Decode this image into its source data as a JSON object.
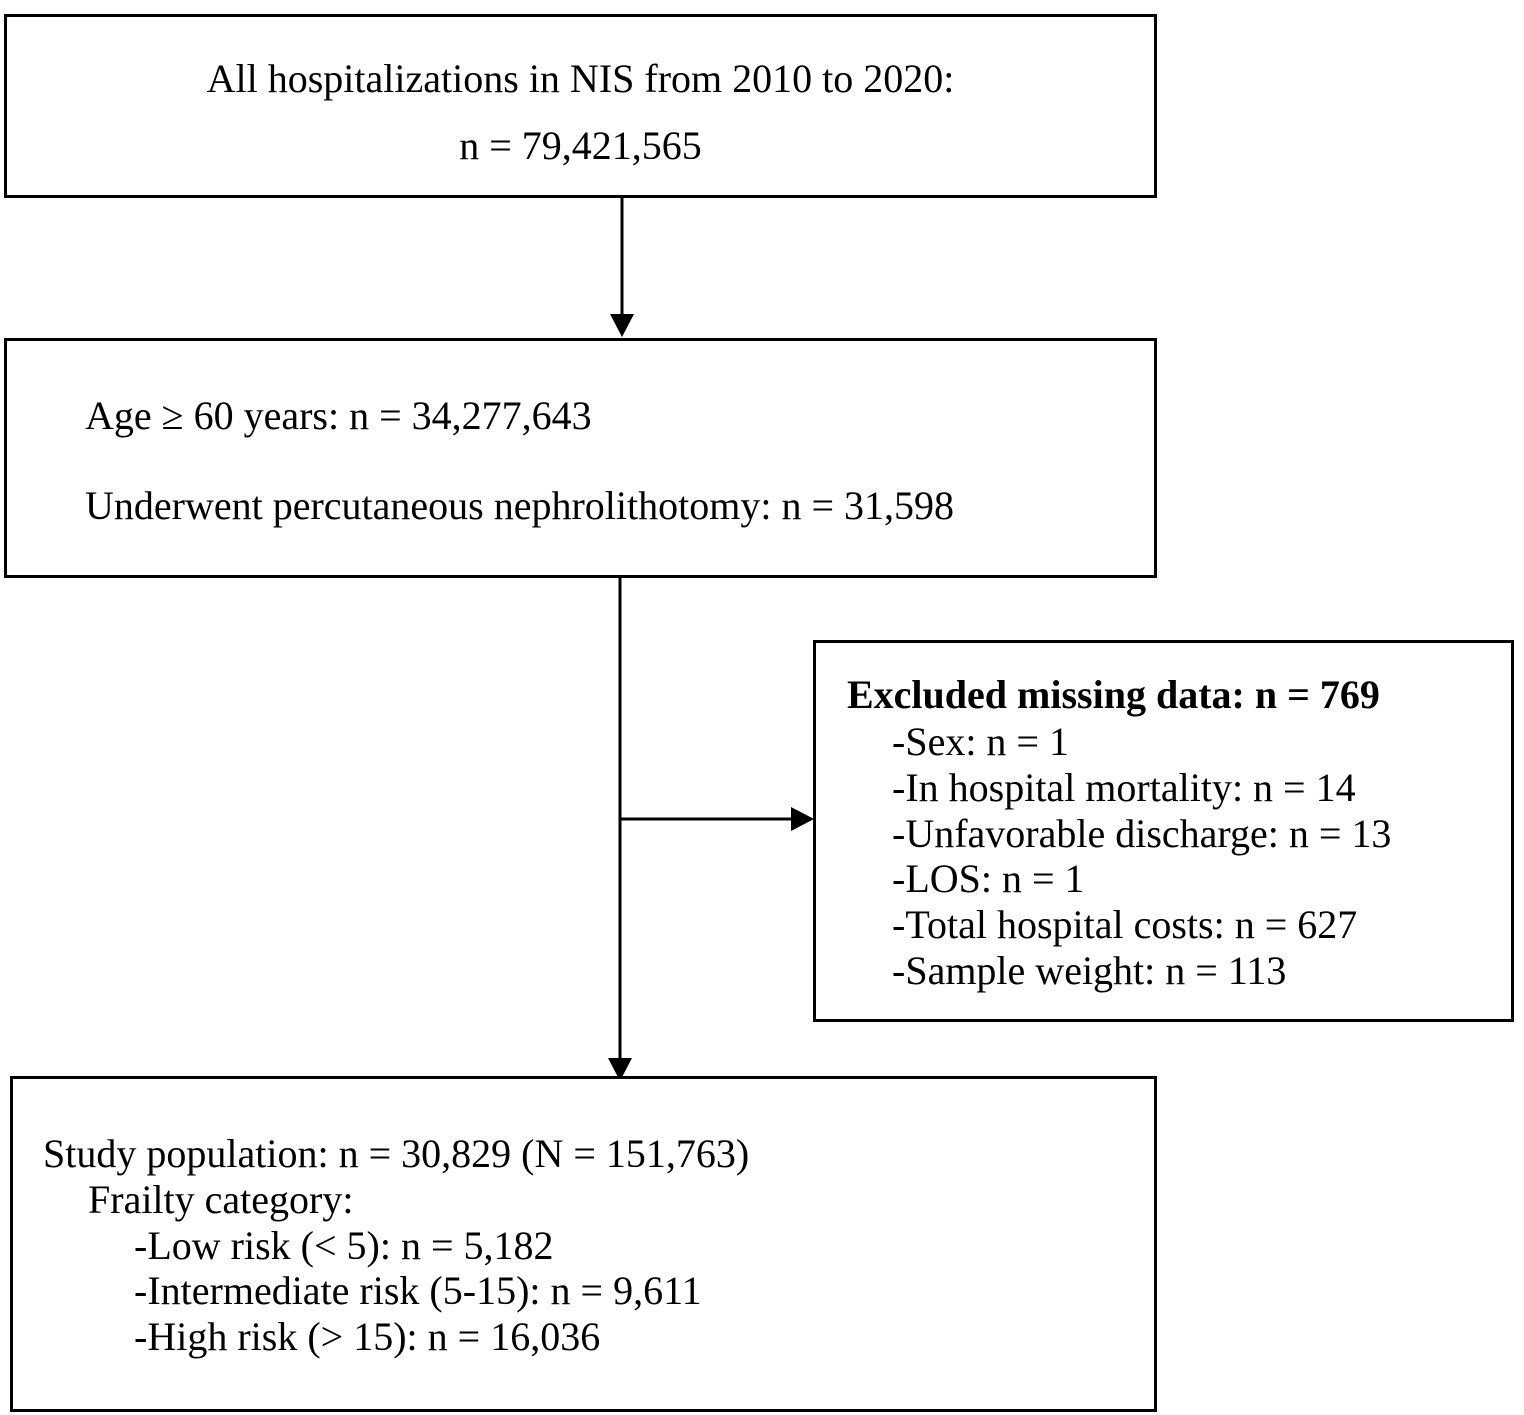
{
  "box1": {
    "line1": "All hospitalizations in NIS from 2010 to 2020:",
    "line2": "n = 79,421,565"
  },
  "box2": {
    "line1": "Age ≥ 60 years: n = 34,277,643",
    "line2": "Underwent percutaneous nephrolithotomy: n = 31,598"
  },
  "excluded": {
    "title": "Excluded missing data: n = 769",
    "items": [
      "-Sex: n = 1",
      "-In hospital mortality: n = 14",
      "-Unfavorable discharge: n = 13",
      "-LOS: n = 1",
      "-Total hospital costs: n = 627",
      "-Sample weight: n = 113"
    ]
  },
  "study": {
    "line1": "Study population: n = 30,829 (N = 151,763)",
    "line2": "Frailty category:",
    "items": [
      "-Low risk (< 5): n = 5,182",
      "-Intermediate risk (5-15): n = 9,611",
      "-High risk (> 15): n = 16,036"
    ]
  }
}
